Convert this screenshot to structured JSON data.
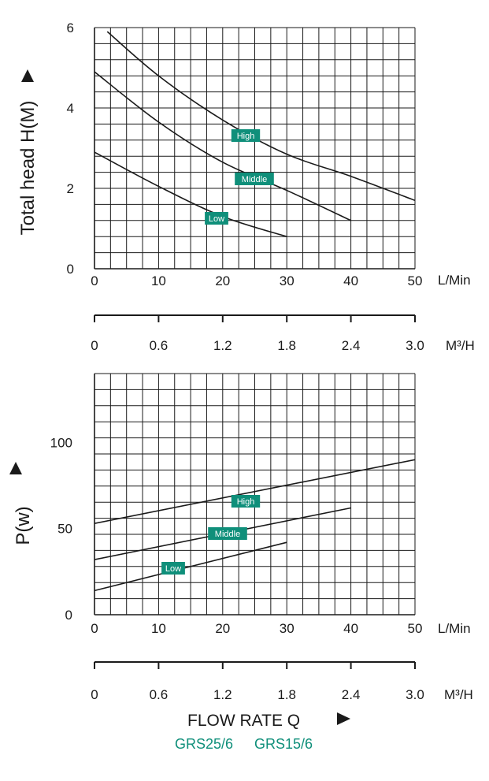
{
  "accent_color": "#0f8f7a",
  "chart_data": [
    {
      "type": "line",
      "ylabel": "Total head H(M)",
      "xlabel": "L/Min",
      "xlim": [
        0,
        50
      ],
      "ylim": [
        0,
        6
      ],
      "x_ticks": [
        "0",
        "10",
        "20",
        "30",
        "40",
        "50"
      ],
      "y_ticks": [
        "0",
        "2",
        "4",
        "6"
      ],
      "secondary_x_unit": "M³/H",
      "secondary_x_ticks": [
        "0",
        "0.6",
        "1.2",
        "1.8",
        "2.4",
        "3.0"
      ],
      "grid": true,
      "series": [
        {
          "name": "High",
          "x": [
            2,
            10,
            20,
            30,
            40,
            50
          ],
          "y": [
            5.9,
            4.8,
            3.7,
            2.85,
            2.3,
            1.7
          ]
        },
        {
          "name": "Middle",
          "x": [
            0,
            10,
            20,
            30,
            40
          ],
          "y": [
            4.9,
            3.65,
            2.65,
            1.95,
            1.2
          ]
        },
        {
          "name": "Low",
          "x": [
            0,
            10,
            20,
            30
          ],
          "y": [
            2.9,
            2.05,
            1.3,
            0.8
          ]
        }
      ]
    },
    {
      "type": "line",
      "ylabel": "P(w)",
      "xlabel": "L/Min",
      "xlim": [
        0,
        50
      ],
      "ylim": [
        0,
        140
      ],
      "x_ticks": [
        "0",
        "10",
        "20",
        "30",
        "40",
        "50"
      ],
      "y_ticks": [
        "0",
        "50",
        "100"
      ],
      "secondary_x_unit": "M³/H",
      "secondary_x_ticks": [
        "0",
        "0.6",
        "1.2",
        "1.8",
        "2.4",
        "3.0"
      ],
      "grid": true,
      "series": [
        {
          "name": "High",
          "x": [
            0,
            50
          ],
          "y": [
            53,
            90
          ]
        },
        {
          "name": "Middle",
          "x": [
            0,
            40
          ],
          "y": [
            32,
            62
          ]
        },
        {
          "name": "Low",
          "x": [
            0,
            30
          ],
          "y": [
            14,
            42
          ]
        }
      ]
    }
  ],
  "footer": {
    "xtitle": "FLOW RATE Q",
    "models": [
      "GRS25/6",
      "GRS15/6"
    ]
  }
}
